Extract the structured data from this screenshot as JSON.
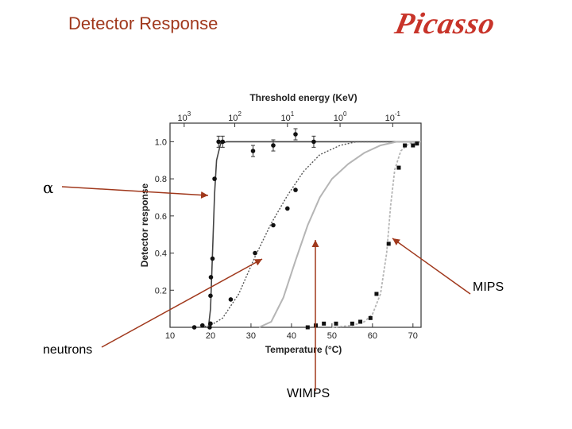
{
  "slide": {
    "title": "Detector Response",
    "logo_text": "Picasso"
  },
  "annotations": {
    "alpha": "α",
    "neutrons": "neutrons",
    "wimps": "WIMPS",
    "mips": "MIPS",
    "arrow_color": "#a0381c"
  },
  "chart_data": {
    "type": "scatter",
    "xlabel": "Temperature (°C)",
    "ylabel": "Detector response",
    "top_axis_label": "Threshold energy (KeV)",
    "xlim": [
      10,
      72
    ],
    "ylim": [
      0,
      1.1
    ],
    "x_ticks": [
      "10",
      "20",
      "30",
      "40",
      "50",
      "60",
      "70"
    ],
    "y_ticks": [
      "0.2",
      "0.4",
      "0.6",
      "0.8",
      "1.0"
    ],
    "y_tick_values": [
      0.2,
      0.4,
      0.6,
      0.8,
      1.0
    ],
    "top_ticks": [
      {
        "base": "10",
        "exp": "3",
        "t": 13.5
      },
      {
        "base": "10",
        "exp": "2",
        "t": 26
      },
      {
        "base": "10",
        "exp": "1",
        "t": 39
      },
      {
        "base": "10",
        "exp": "0",
        "t": 52
      },
      {
        "base": "10",
        "exp": "-1",
        "t": 65
      }
    ],
    "series": [
      {
        "style": "solid-dark",
        "marker": "circle",
        "points": [
          [
            19.8,
            0.0
          ],
          [
            20.0,
            0.17
          ],
          [
            20.1,
            0.27
          ],
          [
            20.5,
            0.37
          ],
          [
            21.0,
            0.8
          ],
          [
            22.0,
            1.0
          ],
          [
            23.0,
            1.0
          ],
          [
            30.5,
            0.95
          ],
          [
            35.5,
            0.98
          ],
          [
            41.0,
            1.04
          ],
          [
            45.5,
            1.0
          ]
        ],
        "error_bars": [
          0,
          0,
          0,
          0,
          0,
          0.03,
          0.03,
          0.03,
          0.03,
          0.03,
          0.03
        ],
        "curve": [
          [
            19.5,
            0.0
          ],
          [
            20.0,
            0.1
          ],
          [
            20.5,
            0.4
          ],
          [
            21.0,
            0.72
          ],
          [
            21.5,
            0.9
          ],
          [
            22.5,
            0.99
          ],
          [
            24.0,
            1.0
          ],
          [
            72.0,
            1.0
          ]
        ]
      },
      {
        "style": "dotted-dark",
        "marker": "circle",
        "points": [
          [
            16.0,
            0.0
          ],
          [
            18.0,
            0.01
          ],
          [
            20.0,
            0.02
          ],
          [
            25.0,
            0.15
          ],
          [
            31.0,
            0.4
          ],
          [
            35.5,
            0.55
          ],
          [
            39.0,
            0.64
          ],
          [
            41.0,
            0.74
          ]
        ],
        "curve": [
          [
            17,
            0.0
          ],
          [
            20,
            0.01
          ],
          [
            23,
            0.05
          ],
          [
            27,
            0.18
          ],
          [
            31,
            0.38
          ],
          [
            35,
            0.56
          ],
          [
            39,
            0.71
          ],
          [
            43,
            0.84
          ],
          [
            47,
            0.93
          ],
          [
            52,
            0.98
          ],
          [
            56,
            1.0
          ],
          [
            72,
            1.0
          ]
        ]
      },
      {
        "style": "solid-gray",
        "marker": "none",
        "curve": [
          [
            32,
            0.0
          ],
          [
            35,
            0.03
          ],
          [
            38,
            0.16
          ],
          [
            41,
            0.36
          ],
          [
            44,
            0.55
          ],
          [
            47,
            0.7
          ],
          [
            50,
            0.8
          ],
          [
            54,
            0.88
          ],
          [
            58,
            0.94
          ],
          [
            62,
            0.98
          ],
          [
            66,
            1.0
          ],
          [
            72,
            1.0
          ]
        ]
      },
      {
        "style": "dotted-gray",
        "marker": "square",
        "points": [
          [
            44,
            0.0
          ],
          [
            46,
            0.01
          ],
          [
            48,
            0.02
          ],
          [
            51,
            0.02
          ],
          [
            55,
            0.02
          ],
          [
            57,
            0.03
          ],
          [
            59.5,
            0.05
          ],
          [
            61.0,
            0.18
          ],
          [
            64.0,
            0.45
          ],
          [
            66.5,
            0.86
          ],
          [
            68.0,
            0.98
          ],
          [
            70.0,
            0.98
          ],
          [
            71.0,
            0.99
          ]
        ],
        "curve": [
          [
            50,
            0.0
          ],
          [
            55,
            0.01
          ],
          [
            58,
            0.03
          ],
          [
            60,
            0.07
          ],
          [
            62,
            0.18
          ],
          [
            63.5,
            0.4
          ],
          [
            64.5,
            0.66
          ],
          [
            65.5,
            0.85
          ],
          [
            67,
            0.95
          ],
          [
            69,
            0.99
          ],
          [
            72,
            1.0
          ]
        ]
      }
    ]
  }
}
